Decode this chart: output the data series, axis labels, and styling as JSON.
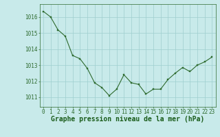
{
  "x": [
    0,
    1,
    2,
    3,
    4,
    5,
    6,
    7,
    8,
    9,
    10,
    11,
    12,
    13,
    14,
    15,
    16,
    17,
    18,
    19,
    20,
    21,
    22,
    23
  ],
  "y": [
    1016.35,
    1016.0,
    1015.2,
    1014.8,
    1013.6,
    1013.4,
    1012.8,
    1011.9,
    1011.6,
    1011.1,
    1011.5,
    1012.4,
    1011.9,
    1011.8,
    1011.2,
    1011.5,
    1011.5,
    1012.1,
    1012.5,
    1012.85,
    1012.6,
    1013.0,
    1013.2,
    1013.5
  ],
  "line_color": "#2d6a2d",
  "marker_color": "#2d6a2d",
  "bg_color": "#c8eaea",
  "grid_color": "#9ecece",
  "xlabel": "Graphe pression niveau de la mer (hPa)",
  "xlabel_color": "#1a5c1a",
  "xlabel_fontsize": 7.0,
  "yticks": [
    1011,
    1012,
    1013,
    1014,
    1015,
    1016
  ],
  "ylim": [
    1010.4,
    1016.8
  ],
  "xlim": [
    -0.5,
    23.5
  ],
  "xticks": [
    0,
    1,
    2,
    3,
    4,
    5,
    6,
    7,
    8,
    9,
    10,
    11,
    12,
    13,
    14,
    15,
    16,
    17,
    18,
    19,
    20,
    21,
    22,
    23
  ],
  "tick_color": "#2d6a2d",
  "tick_fontsize": 5.5,
  "axis_color": "#2d6a2d",
  "linewidth": 0.8,
  "markersize": 2.0
}
